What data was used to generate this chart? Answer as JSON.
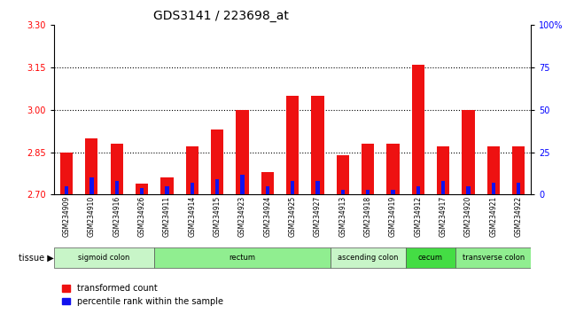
{
  "title": "GDS3141 / 223698_at",
  "samples": [
    "GSM234909",
    "GSM234910",
    "GSM234916",
    "GSM234926",
    "GSM234911",
    "GSM234914",
    "GSM234915",
    "GSM234923",
    "GSM234924",
    "GSM234925",
    "GSM234927",
    "GSM234913",
    "GSM234918",
    "GSM234919",
    "GSM234912",
    "GSM234917",
    "GSM234920",
    "GSM234921",
    "GSM234922"
  ],
  "tc": [
    2.85,
    2.9,
    2.88,
    2.74,
    2.76,
    2.87,
    2.93,
    3.0,
    2.78,
    3.05,
    3.05,
    2.84,
    2.88,
    2.88,
    3.16,
    2.87,
    3.0,
    2.87,
    2.87
  ],
  "pr": [
    5,
    10,
    8,
    4,
    5,
    7,
    9,
    12,
    5,
    8,
    8,
    3,
    3,
    3,
    5,
    8,
    5,
    7,
    7
  ],
  "ymin": 2.7,
  "ymax": 3.3,
  "yticks": [
    2.7,
    2.85,
    3.0,
    3.15,
    3.3
  ],
  "right_yticks": [
    0,
    25,
    50,
    75,
    100
  ],
  "dotted_lines": [
    2.85,
    3.0,
    3.15
  ],
  "tissue_groups": [
    {
      "label": "sigmoid colon",
      "start": 0,
      "end": 4,
      "color": "#c8f5c8"
    },
    {
      "label": "rectum",
      "start": 4,
      "end": 11,
      "color": "#90ee90"
    },
    {
      "label": "ascending colon",
      "start": 11,
      "end": 14,
      "color": "#c8f5c8"
    },
    {
      "label": "cecum",
      "start": 14,
      "end": 16,
      "color": "#44dd44"
    },
    {
      "label": "transverse colon",
      "start": 16,
      "end": 19,
      "color": "#90ee90"
    }
  ],
  "bar_color_red": "#ee1111",
  "bar_color_blue": "#1111ee",
  "title_fontsize": 10,
  "tick_fontsize": 7,
  "xtick_fontsize": 5.5
}
